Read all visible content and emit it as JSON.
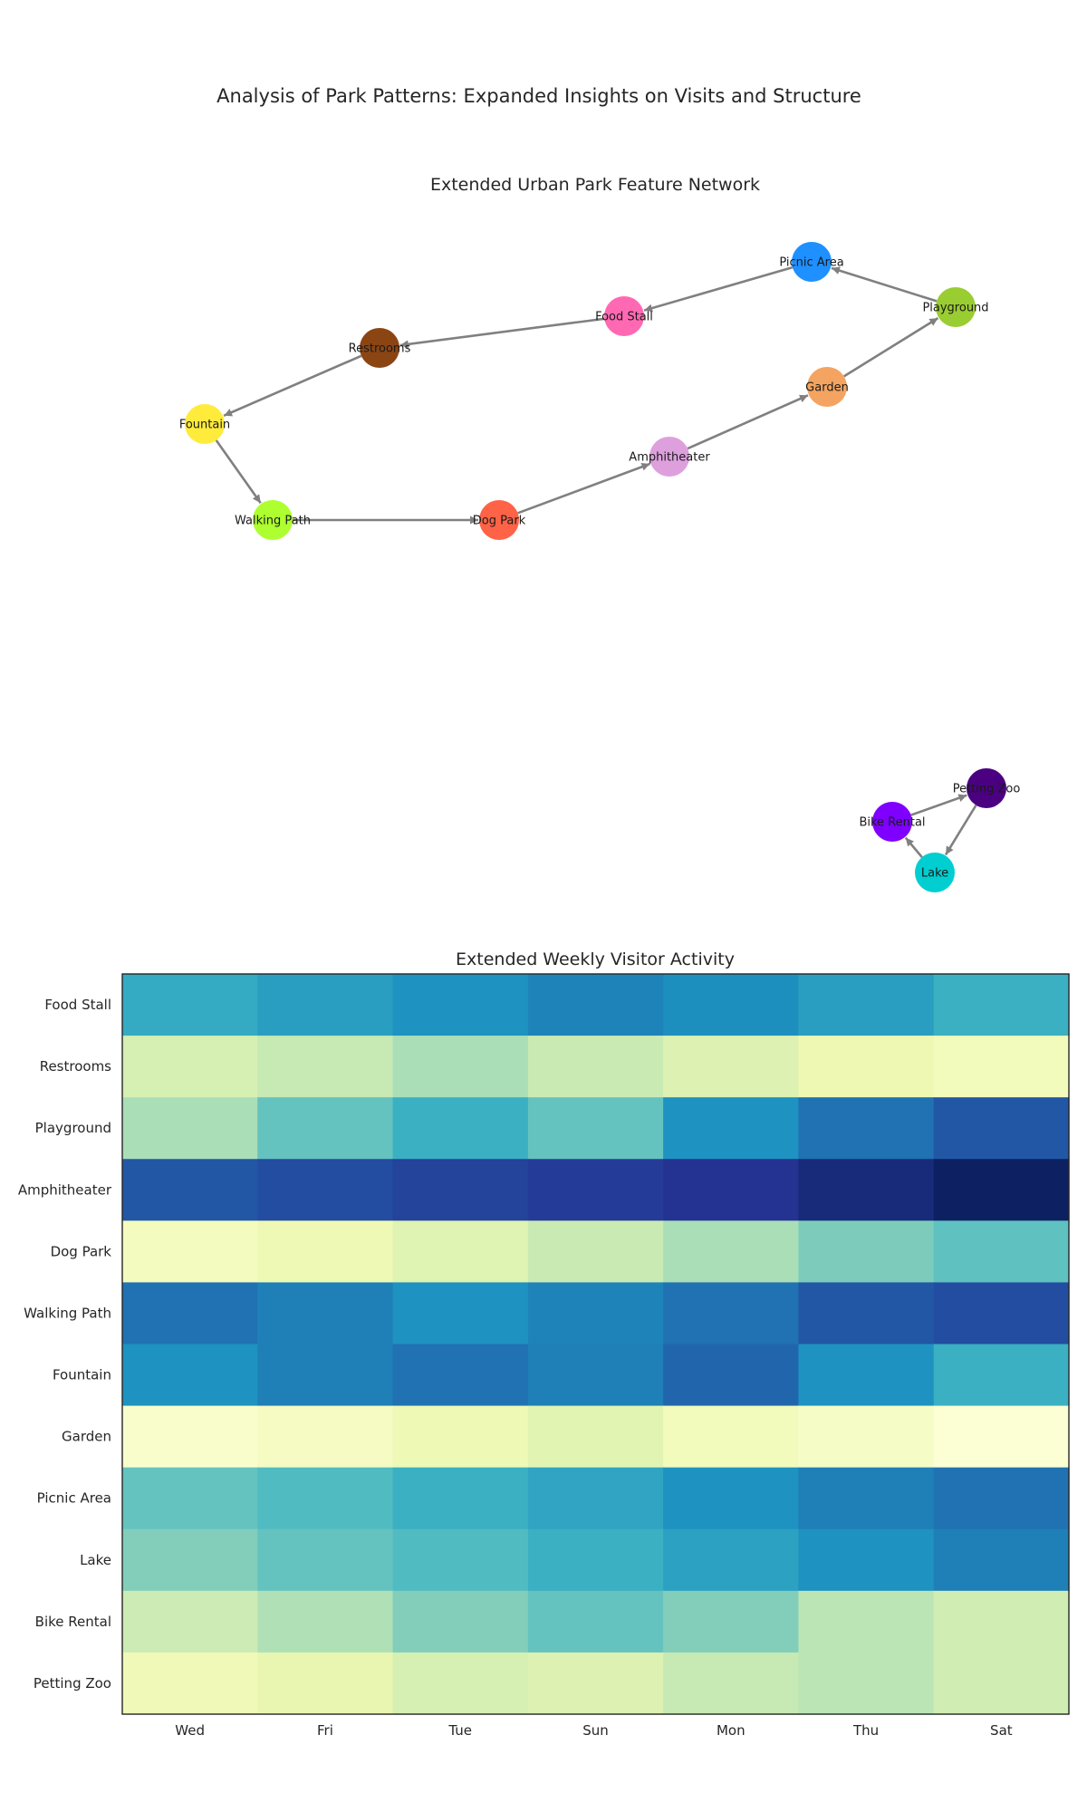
{
  "page": {
    "title": "Analysis of Park Patterns: Expanded Insights on Visits and Structure"
  },
  "chart_data": [
    {
      "type": "network",
      "title": "Extended Urban Park Feature Network",
      "nodes": [
        {
          "id": "Picnic Area",
          "color": "#1e90ff"
        },
        {
          "id": "Playground",
          "color": "#9acd32"
        },
        {
          "id": "Food Stall",
          "color": "#ff69b4"
        },
        {
          "id": "Restrooms",
          "color": "#8b4513"
        },
        {
          "id": "Fountain",
          "color": "#ffeb3b"
        },
        {
          "id": "Walking Path",
          "color": "#adff2f"
        },
        {
          "id": "Dog Park",
          "color": "#ff6347"
        },
        {
          "id": "Amphitheater",
          "color": "#dda0dd"
        },
        {
          "id": "Garden",
          "color": "#f4a460"
        },
        {
          "id": "Petting Zoo",
          "color": "#4b0082"
        },
        {
          "id": "Bike Rental",
          "color": "#7f00ff"
        },
        {
          "id": "Lake",
          "color": "#00ced1"
        }
      ],
      "edges": [
        {
          "source": "Playground",
          "target": "Picnic Area"
        },
        {
          "source": "Picnic Area",
          "target": "Food Stall"
        },
        {
          "source": "Food Stall",
          "target": "Restrooms"
        },
        {
          "source": "Restrooms",
          "target": "Fountain"
        },
        {
          "source": "Fountain",
          "target": "Walking Path"
        },
        {
          "source": "Walking Path",
          "target": "Dog Park"
        },
        {
          "source": "Dog Park",
          "target": "Amphitheater"
        },
        {
          "source": "Amphitheater",
          "target": "Garden"
        },
        {
          "source": "Garden",
          "target": "Playground"
        },
        {
          "source": "Bike Rental",
          "target": "Petting Zoo"
        },
        {
          "source": "Petting Zoo",
          "target": "Lake"
        },
        {
          "source": "Lake",
          "target": "Bike Rental"
        }
      ]
    },
    {
      "type": "heatmap",
      "title": "Extended Weekly Visitor Activity",
      "x_categories": [
        "Wed",
        "Fri",
        "Tue",
        "Sun",
        "Mon",
        "Thu",
        "Sat"
      ],
      "y_categories": [
        "Food Stall",
        "Restrooms",
        "Playground",
        "Amphitheater",
        "Dog Park",
        "Walking Path",
        "Fountain",
        "Garden",
        "Picnic Area",
        "Lake",
        "Bike Rental",
        "Petting Zoo"
      ],
      "colormap": "YlGnBu",
      "value_range": [
        0,
        1
      ],
      "values": [
        [
          0.54,
          0.58,
          0.62,
          0.66,
          0.63,
          0.58,
          0.52
        ],
        [
          0.2,
          0.25,
          0.3,
          0.24,
          0.18,
          0.12,
          0.09
        ],
        [
          0.3,
          0.43,
          0.52,
          0.43,
          0.62,
          0.7,
          0.77
        ],
        [
          0.77,
          0.8,
          0.83,
          0.85,
          0.88,
          0.93,
          0.98
        ],
        [
          0.08,
          0.11,
          0.17,
          0.24,
          0.3,
          0.38,
          0.44
        ],
        [
          0.7,
          0.67,
          0.62,
          0.66,
          0.7,
          0.77,
          0.8
        ],
        [
          0.62,
          0.67,
          0.7,
          0.67,
          0.73,
          0.62,
          0.52
        ],
        [
          0.04,
          0.07,
          0.11,
          0.16,
          0.09,
          0.06,
          0.02
        ],
        [
          0.43,
          0.47,
          0.52,
          0.56,
          0.62,
          0.67,
          0.7
        ],
        [
          0.37,
          0.43,
          0.47,
          0.52,
          0.57,
          0.62,
          0.67
        ],
        [
          0.23,
          0.29,
          0.37,
          0.43,
          0.37,
          0.27,
          0.22
        ],
        [
          0.1,
          0.14,
          0.2,
          0.18,
          0.25,
          0.27,
          0.22
        ]
      ]
    }
  ]
}
